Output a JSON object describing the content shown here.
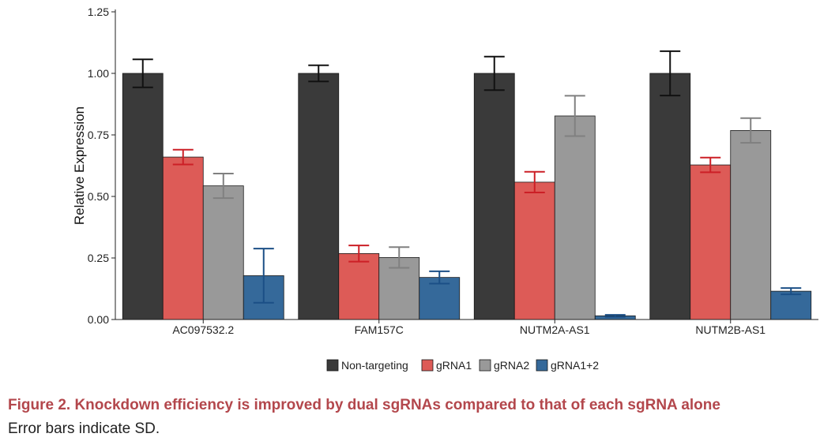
{
  "chart_data": {
    "type": "bar",
    "ylabel": "Relative Expression",
    "xlabel": "",
    "ylim": [
      0,
      1.25
    ],
    "yticks": [
      "0.00",
      "0.25",
      "0.50",
      "0.75",
      "1.00",
      "1.25"
    ],
    "categories": [
      "AC097532.2",
      "FAM157C",
      "NUTM2A-AS1",
      "NUTM2B-AS1"
    ],
    "series": [
      {
        "name": "Non-targeting",
        "color": "#3a3a3a",
        "err_color": "#111111",
        "values": [
          1.0,
          1.0,
          1.0,
          1.0
        ],
        "errors": [
          0.057,
          0.033,
          0.068,
          0.09
        ]
      },
      {
        "name": "gRNA1",
        "color": "#dd5b57",
        "err_color": "#cc1f26",
        "values": [
          0.66,
          0.268,
          0.558,
          0.628
        ],
        "errors": [
          0.03,
          0.033,
          0.042,
          0.03
        ]
      },
      {
        "name": "gRNA2",
        "color": "#999999",
        "err_color": "#808080",
        "values": [
          0.543,
          0.252,
          0.827,
          0.768
        ],
        "errors": [
          0.05,
          0.042,
          0.082,
          0.05
        ]
      },
      {
        "name": "gRNA1+2",
        "color": "#35699a",
        "err_color": "#1b4f86",
        "values": [
          0.178,
          0.171,
          0.015,
          0.115
        ],
        "errors": [
          0.11,
          0.025,
          0.004,
          0.013
        ]
      }
    ]
  },
  "caption": {
    "title": "Figure 2.  Knockdown efficiency is improved by dual sgRNAs compared to that of each sgRNA alone",
    "note": "Error bars indicate SD."
  }
}
